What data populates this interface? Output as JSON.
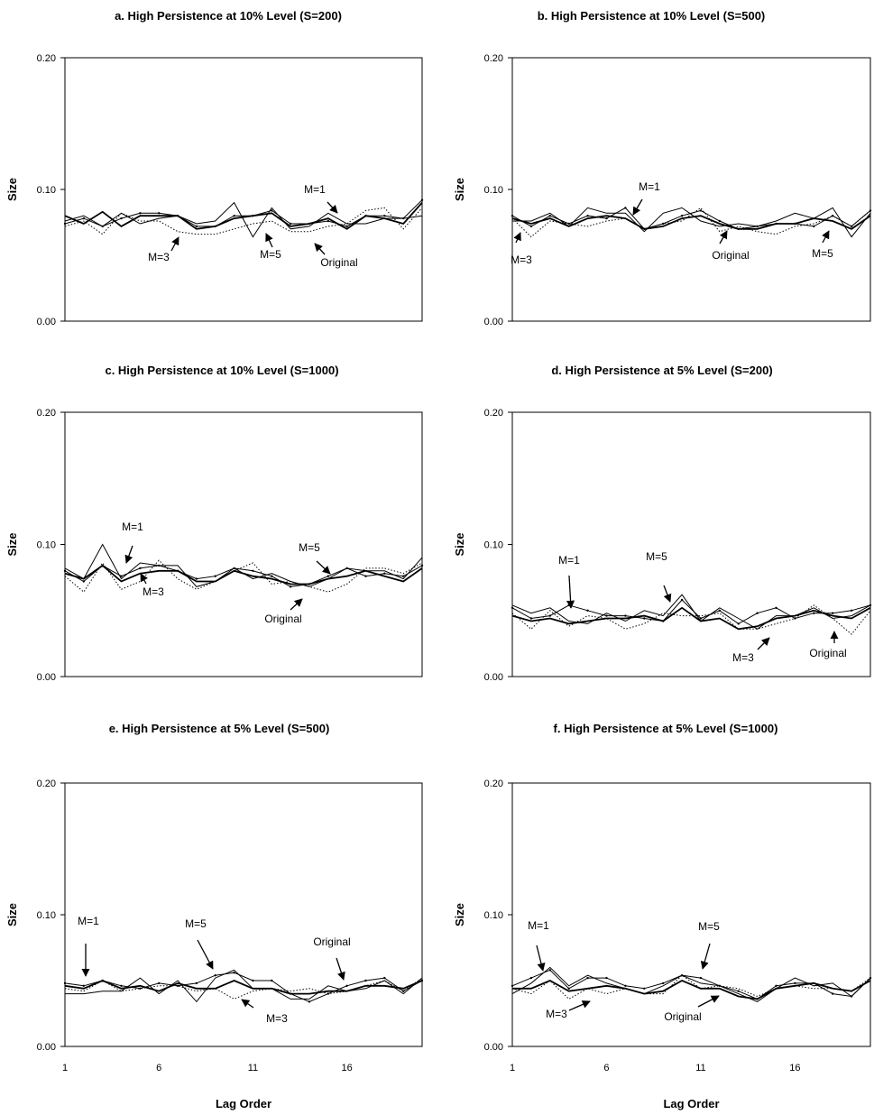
{
  "chart_data": [
    {
      "type": "line",
      "title": "a. High Persistence at 10% Level (S=200)",
      "ylabel": "Size",
      "xlabel": "",
      "ylim": [
        0,
        0.2
      ],
      "yticks": [
        "0.00",
        "0.10",
        "0.20"
      ],
      "xlim": [
        1,
        20
      ],
      "xticks": [],
      "x": [
        1,
        2,
        3,
        4,
        5,
        6,
        7,
        8,
        9,
        10,
        11,
        12,
        13,
        14,
        15,
        16,
        17,
        18,
        19,
        20
      ],
      "series": [
        {
          "values": [
            0.08,
            0.074,
            0.083,
            0.072,
            0.08,
            0.08,
            0.08,
            0.07,
            0.072,
            0.078,
            0.08,
            0.082,
            0.072,
            0.074,
            0.078,
            0.07,
            0.08,
            0.078,
            0.074,
            0.09
          ],
          "style": "solid-thick"
        },
        {
          "values": [
            0.076,
            0.08,
            0.072,
            0.082,
            0.074,
            0.078,
            0.08,
            0.074,
            0.076,
            0.09,
            0.064,
            0.086,
            0.07,
            0.072,
            0.082,
            0.074,
            0.074,
            0.078,
            0.078,
            0.08
          ],
          "style": "solid"
        },
        {
          "values": [
            0.074,
            0.078,
            0.072,
            0.078,
            0.082,
            0.082,
            0.08,
            0.072,
            0.072,
            0.08,
            0.08,
            0.084,
            0.074,
            0.074,
            0.076,
            0.072,
            0.08,
            0.08,
            0.078,
            0.092
          ],
          "style": "solid-marker"
        },
        {
          "values": [
            0.072,
            0.076,
            0.066,
            0.082,
            0.076,
            0.076,
            0.068,
            0.066,
            0.066,
            0.07,
            0.074,
            0.076,
            0.068,
            0.068,
            0.072,
            0.074,
            0.084,
            0.086,
            0.07,
            0.086
          ],
          "style": "dotted"
        }
      ],
      "annotations": [
        "M=1",
        "M=3",
        "M=5",
        "Original"
      ]
    },
    {
      "type": "line",
      "title": "b. High Persistence at 10% Level (S=500)",
      "ylabel": "Size",
      "xlabel": "",
      "ylim": [
        0,
        0.2
      ],
      "yticks": [
        "0.00",
        "0.10",
        "0.20"
      ],
      "xlim": [
        1,
        20
      ],
      "xticks": [],
      "x": [
        1,
        2,
        3,
        4,
        5,
        6,
        7,
        8,
        9,
        10,
        11,
        12,
        13,
        14,
        15,
        16,
        17,
        18,
        19,
        20
      ],
      "series": [
        {
          "values": [
            0.078,
            0.074,
            0.078,
            0.072,
            0.078,
            0.08,
            0.078,
            0.07,
            0.072,
            0.078,
            0.08,
            0.074,
            0.07,
            0.07,
            0.074,
            0.074,
            0.078,
            0.076,
            0.07,
            0.08
          ],
          "style": "solid-thick"
        },
        {
          "values": [
            0.076,
            0.076,
            0.082,
            0.072,
            0.086,
            0.082,
            0.082,
            0.068,
            0.082,
            0.086,
            0.076,
            0.072,
            0.074,
            0.072,
            0.076,
            0.082,
            0.078,
            0.086,
            0.064,
            0.082
          ],
          "style": "solid"
        },
        {
          "values": [
            0.08,
            0.072,
            0.08,
            0.074,
            0.08,
            0.078,
            0.086,
            0.07,
            0.074,
            0.08,
            0.084,
            0.076,
            0.07,
            0.072,
            0.074,
            0.074,
            0.072,
            0.08,
            0.072,
            0.084
          ],
          "style": "solid-marker"
        },
        {
          "values": [
            0.078,
            0.064,
            0.076,
            0.074,
            0.072,
            0.076,
            0.078,
            0.07,
            0.074,
            0.076,
            0.086,
            0.068,
            0.072,
            0.068,
            0.066,
            0.072,
            0.074,
            0.08,
            0.072,
            0.084
          ],
          "style": "dotted"
        }
      ],
      "annotations": [
        "M=1",
        "M=3",
        "M=5",
        "Original"
      ]
    },
    {
      "type": "line",
      "title": "c. High Persistence at 10% Level (S=1000)",
      "ylabel": "Size",
      "xlabel": "",
      "ylim": [
        0,
        0.2
      ],
      "yticks": [
        "0.00",
        "0.10",
        "0.20"
      ],
      "xlim": [
        1,
        20
      ],
      "xticks": [],
      "x": [
        1,
        2,
        3,
        4,
        5,
        6,
        7,
        8,
        9,
        10,
        11,
        12,
        13,
        14,
        15,
        16,
        17,
        18,
        19,
        20
      ],
      "series": [
        {
          "values": [
            0.078,
            0.074,
            0.084,
            0.072,
            0.078,
            0.08,
            0.08,
            0.072,
            0.072,
            0.08,
            0.076,
            0.074,
            0.07,
            0.07,
            0.074,
            0.076,
            0.08,
            0.076,
            0.072,
            0.082
          ],
          "style": "solid-thick"
        },
        {
          "values": [
            0.082,
            0.074,
            0.1,
            0.074,
            0.086,
            0.084,
            0.084,
            0.068,
            0.072,
            0.082,
            0.074,
            0.078,
            0.072,
            0.068,
            0.074,
            0.082,
            0.08,
            0.08,
            0.074,
            0.09
          ],
          "style": "solid"
        },
        {
          "values": [
            0.08,
            0.072,
            0.084,
            0.076,
            0.082,
            0.084,
            0.08,
            0.074,
            0.076,
            0.082,
            0.08,
            0.076,
            0.068,
            0.07,
            0.076,
            0.082,
            0.076,
            0.078,
            0.076,
            0.084
          ],
          "style": "solid-marker"
        },
        {
          "values": [
            0.076,
            0.064,
            0.086,
            0.066,
            0.072,
            0.088,
            0.074,
            0.066,
            0.072,
            0.08,
            0.086,
            0.07,
            0.072,
            0.068,
            0.064,
            0.07,
            0.082,
            0.082,
            0.078,
            0.086
          ],
          "style": "dotted"
        }
      ],
      "annotations": [
        "M=1",
        "M=3",
        "M=5",
        "Original"
      ]
    },
    {
      "type": "line",
      "title": "d. High Persistence at 5% Level (S=200)",
      "ylabel": "Size",
      "xlabel": "",
      "ylim": [
        0,
        0.2
      ],
      "yticks": [
        "0.00",
        "0.10",
        "0.20"
      ],
      "xlim": [
        1,
        20
      ],
      "xticks": [],
      "x": [
        1,
        2,
        3,
        4,
        5,
        6,
        7,
        8,
        9,
        10,
        11,
        12,
        13,
        14,
        15,
        16,
        17,
        18,
        19,
        20
      ],
      "series": [
        {
          "values": [
            0.046,
            0.042,
            0.044,
            0.04,
            0.042,
            0.044,
            0.044,
            0.046,
            0.042,
            0.052,
            0.042,
            0.044,
            0.036,
            0.038,
            0.044,
            0.046,
            0.05,
            0.046,
            0.044,
            0.052
          ],
          "style": "solid-thick"
        },
        {
          "values": [
            0.054,
            0.048,
            0.052,
            0.042,
            0.04,
            0.048,
            0.042,
            0.05,
            0.046,
            0.062,
            0.042,
            0.052,
            0.044,
            0.036,
            0.046,
            0.046,
            0.052,
            0.044,
            0.046,
            0.054
          ],
          "style": "solid"
        },
        {
          "values": [
            0.052,
            0.044,
            0.046,
            0.054,
            0.05,
            0.046,
            0.046,
            0.044,
            0.042,
            0.058,
            0.044,
            0.05,
            0.04,
            0.048,
            0.052,
            0.044,
            0.048,
            0.048,
            0.05,
            0.054
          ],
          "style": "solid-marker"
        },
        {
          "values": [
            0.048,
            0.036,
            0.05,
            0.038,
            0.046,
            0.044,
            0.036,
            0.04,
            0.048,
            0.046,
            0.046,
            0.048,
            0.036,
            0.036,
            0.04,
            0.044,
            0.054,
            0.044,
            0.032,
            0.05
          ],
          "style": "dotted"
        }
      ],
      "annotations": [
        "M=1",
        "M=3",
        "M=5",
        "Original"
      ]
    },
    {
      "type": "line",
      "title": "e. High Persistence at 5% Level (S=500)",
      "ylabel": "Size",
      "xlabel": "Lag Order",
      "ylim": [
        0,
        0.2
      ],
      "yticks": [
        "0.00",
        "0.10",
        "0.20"
      ],
      "xlim": [
        1,
        20
      ],
      "xticks": [
        "1",
        "6",
        "11",
        "16"
      ],
      "x": [
        1,
        2,
        3,
        4,
        5,
        6,
        7,
        8,
        9,
        10,
        11,
        12,
        13,
        14,
        15,
        16,
        17,
        18,
        19,
        20
      ],
      "series": [
        {
          "values": [
            0.046,
            0.044,
            0.05,
            0.044,
            0.046,
            0.042,
            0.048,
            0.044,
            0.044,
            0.05,
            0.044,
            0.044,
            0.04,
            0.04,
            0.042,
            0.042,
            0.046,
            0.046,
            0.044,
            0.05
          ],
          "style": "solid-thick"
        },
        {
          "values": [
            0.04,
            0.04,
            0.042,
            0.042,
            0.052,
            0.04,
            0.05,
            0.034,
            0.052,
            0.058,
            0.044,
            0.044,
            0.036,
            0.036,
            0.046,
            0.042,
            0.044,
            0.05,
            0.04,
            0.052
          ],
          "style": "solid"
        },
        {
          "values": [
            0.048,
            0.046,
            0.05,
            0.046,
            0.044,
            0.048,
            0.046,
            0.048,
            0.054,
            0.056,
            0.05,
            0.05,
            0.04,
            0.034,
            0.04,
            0.046,
            0.05,
            0.052,
            0.042,
            0.05
          ],
          "style": "solid-marker"
        },
        {
          "values": [
            0.044,
            0.042,
            0.05,
            0.042,
            0.044,
            0.046,
            0.046,
            0.042,
            0.044,
            0.036,
            0.042,
            0.044,
            0.042,
            0.044,
            0.04,
            0.042,
            0.046,
            0.05,
            0.042,
            0.052
          ],
          "style": "dotted"
        }
      ],
      "annotations": [
        "M=1",
        "M=3",
        "M=5",
        "Original"
      ]
    },
    {
      "type": "line",
      "title": "f. High Persistence at 5% Level (S=1000)",
      "ylabel": "Size",
      "xlabel": "Lag Order",
      "ylim": [
        0,
        0.2
      ],
      "yticks": [
        "0.00",
        "0.10",
        "0.20"
      ],
      "xlim": [
        1,
        20
      ],
      "xticks": [
        "1",
        "6",
        "11",
        "16"
      ],
      "x": [
        1,
        2,
        3,
        4,
        5,
        6,
        7,
        8,
        9,
        10,
        11,
        12,
        13,
        14,
        15,
        16,
        17,
        18,
        19,
        20
      ],
      "series": [
        {
          "values": [
            0.044,
            0.044,
            0.05,
            0.042,
            0.044,
            0.046,
            0.044,
            0.04,
            0.042,
            0.05,
            0.044,
            0.044,
            0.038,
            0.036,
            0.044,
            0.046,
            0.048,
            0.044,
            0.042,
            0.05
          ],
          "style": "solid-thick"
        },
        {
          "values": [
            0.04,
            0.048,
            0.06,
            0.046,
            0.054,
            0.048,
            0.044,
            0.04,
            0.046,
            0.054,
            0.048,
            0.046,
            0.04,
            0.034,
            0.044,
            0.052,
            0.046,
            0.048,
            0.038,
            0.052
          ],
          "style": "solid"
        },
        {
          "values": [
            0.046,
            0.052,
            0.058,
            0.044,
            0.052,
            0.052,
            0.046,
            0.044,
            0.048,
            0.054,
            0.052,
            0.046,
            0.042,
            0.036,
            0.046,
            0.048,
            0.048,
            0.04,
            0.038,
            0.052
          ],
          "style": "solid-marker"
        },
        {
          "values": [
            0.044,
            0.04,
            0.05,
            0.036,
            0.044,
            0.04,
            0.044,
            0.04,
            0.04,
            0.054,
            0.044,
            0.046,
            0.044,
            0.038,
            0.044,
            0.046,
            0.044,
            0.044,
            0.042,
            0.052
          ],
          "style": "dotted"
        }
      ],
      "annotations": [
        "M=1",
        "M=3",
        "M=5",
        "Original"
      ]
    }
  ]
}
